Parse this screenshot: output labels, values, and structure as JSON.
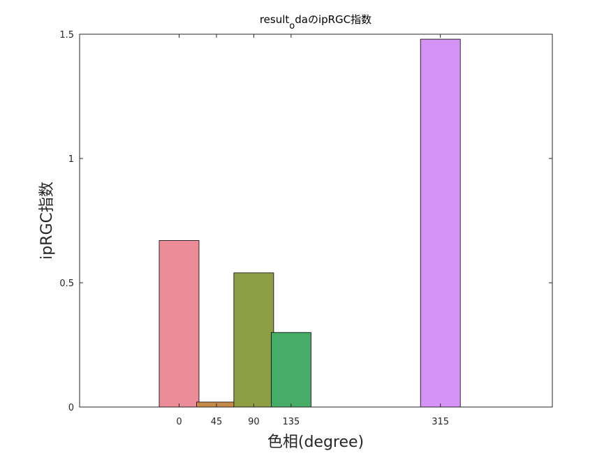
{
  "chart_data": {
    "type": "bar",
    "title": {
      "main": "result",
      "subscript": "o",
      "rest": "daのipRGC指数"
    },
    "xlabel": "色相(degree)",
    "ylabel": "ipRGC指数",
    "x": [
      0,
      45,
      90,
      135,
      315
    ],
    "values": [
      0.67,
      0.02,
      0.54,
      0.3,
      1.48
    ],
    "xlim": [
      -120,
      450
    ],
    "ylim": [
      0,
      1.5
    ],
    "yticks": [
      0,
      0.5,
      1,
      1.5
    ],
    "ytick_labels": [
      "0",
      "0.5",
      "1",
      "1.5"
    ],
    "xtick_labels": [
      "0",
      "45",
      "90",
      "135",
      "315"
    ],
    "bar_colors": [
      "#ec8c98",
      "#c88a48",
      "#8e9e44",
      "#45ad65",
      "#d493f5"
    ],
    "grid": false
  }
}
